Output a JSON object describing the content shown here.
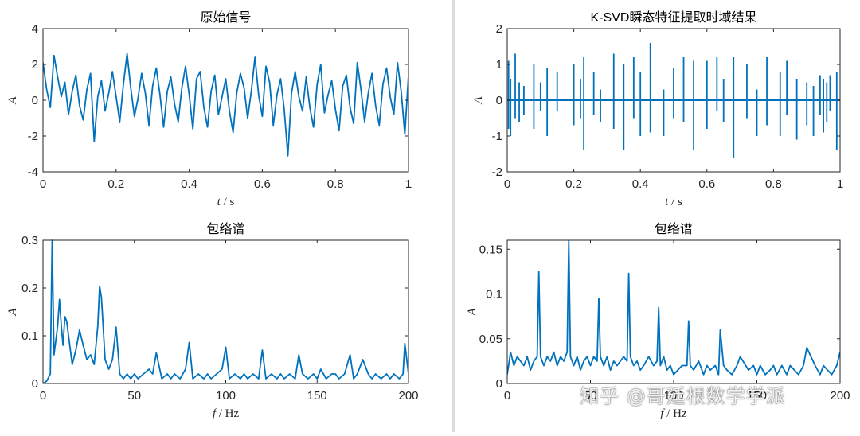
{
  "watermark": "知乎 @哥廷根数学学派",
  "colors": {
    "line": "#0072BD",
    "axis": "#262626"
  },
  "chart_data": [
    {
      "type": "line",
      "title": "原始信号",
      "xlabel_var": "t",
      "xlabel_unit": " / s",
      "ylabel": "A",
      "xlim": [
        0,
        1
      ],
      "ylim": [
        -4,
        4
      ],
      "xticks": [
        0,
        0.2,
        0.4,
        0.6,
        0.8,
        1
      ],
      "yticks": [
        -4,
        -2,
        0,
        2,
        4
      ],
      "xtick_labels": [
        "0",
        "0.2",
        "0.4",
        "0.6",
        "0.8",
        "1"
      ],
      "ytick_labels": [
        "-4",
        "-2",
        "0",
        "2",
        "4"
      ],
      "x": [
        0,
        0.01,
        0.02,
        0.03,
        0.04,
        0.05,
        0.06,
        0.07,
        0.08,
        0.09,
        0.1,
        0.11,
        0.12,
        0.13,
        0.14,
        0.15,
        0.16,
        0.17,
        0.18,
        0.19,
        0.2,
        0.21,
        0.22,
        0.23,
        0.24,
        0.25,
        0.26,
        0.27,
        0.28,
        0.29,
        0.3,
        0.31,
        0.32,
        0.33,
        0.34,
        0.35,
        0.36,
        0.37,
        0.38,
        0.39,
        0.4,
        0.41,
        0.42,
        0.43,
        0.44,
        0.45,
        0.46,
        0.47,
        0.48,
        0.49,
        0.5,
        0.51,
        0.52,
        0.53,
        0.54,
        0.55,
        0.56,
        0.57,
        0.58,
        0.59,
        0.6,
        0.61,
        0.62,
        0.63,
        0.64,
        0.65,
        0.66,
        0.67,
        0.68,
        0.69,
        0.7,
        0.71,
        0.72,
        0.73,
        0.74,
        0.75,
        0.76,
        0.77,
        0.78,
        0.79,
        0.8,
        0.81,
        0.82,
        0.83,
        0.84,
        0.85,
        0.86,
        0.87,
        0.88,
        0.89,
        0.9,
        0.91,
        0.92,
        0.93,
        0.94,
        0.95,
        0.96,
        0.97,
        0.98,
        0.99,
        1
      ],
      "values": [
        2.1,
        0.6,
        -0.4,
        2.5,
        1.3,
        0.2,
        1.0,
        -0.8,
        0.5,
        1.4,
        -0.3,
        -1.1,
        0.6,
        1.5,
        -2.3,
        0.2,
        1.1,
        -0.6,
        0.4,
        1.6,
        0.2,
        -1.2,
        0.9,
        2.6,
        0.7,
        -0.9,
        0.1,
        1.5,
        0.4,
        -1.4,
        0.8,
        1.8,
        0.3,
        -1.5,
        0.5,
        1.3,
        -0.2,
        -1.2,
        0.7,
        1.9,
        0.3,
        -1.6,
        1.2,
        1.6,
        -0.4,
        -1.5,
        0.5,
        1.4,
        -0.8,
        0.2,
        1.2,
        -0.6,
        -1.8,
        0.4,
        1.5,
        0.7,
        -1.0,
        0.5,
        2.4,
        0.3,
        -0.9,
        1.9,
        1.0,
        -1.4,
        0.3,
        1.2,
        -0.5,
        -3.1,
        0.4,
        1.6,
        0.2,
        -0.6,
        1.3,
        -0.4,
        -1.5,
        0.9,
        2.0,
        -0.7,
        0.3,
        1.1,
        -0.5,
        -1.7,
        0.8,
        1.4,
        -0.4,
        -1.3,
        2.1,
        0.6,
        -1.2,
        0.4,
        1.5,
        -0.3,
        -1.4,
        0.9,
        1.8,
        0.2,
        -0.8,
        2.1,
        0.5,
        -1.9,
        1.4
      ]
    },
    {
      "type": "line",
      "title": "K-SVD瞬态特征提取时域结果",
      "xlabel_var": "t",
      "xlabel_unit": " / s",
      "ylabel": "A",
      "xlim": [
        0,
        1
      ],
      "ylim": [
        -2,
        2
      ],
      "xticks": [
        0,
        0.2,
        0.4,
        0.6,
        0.8,
        1
      ],
      "yticks": [
        -2,
        -1,
        0,
        1,
        2
      ],
      "xtick_labels": [
        "0",
        "0.2",
        "0.4",
        "0.6",
        "0.8",
        "1"
      ],
      "ytick_labels": [
        "-2",
        "-1",
        "0",
        "1",
        "2"
      ],
      "impulses": [
        {
          "t": 0.004,
          "hi": 1.1,
          "lo": -0.8
        },
        {
          "t": 0.01,
          "hi": 0.6,
          "lo": -1.0
        },
        {
          "t": 0.024,
          "hi": 1.3,
          "lo": -0.5
        },
        {
          "t": 0.036,
          "hi": 0.5,
          "lo": -0.6
        },
        {
          "t": 0.05,
          "hi": 0.4,
          "lo": -0.4
        },
        {
          "t": 0.08,
          "hi": 1.0,
          "lo": -0.8
        },
        {
          "t": 0.1,
          "hi": 0.5,
          "lo": -0.3
        },
        {
          "t": 0.12,
          "hi": 0.9,
          "lo": -1.0
        },
        {
          "t": 0.15,
          "hi": 0.8,
          "lo": -0.3
        },
        {
          "t": 0.2,
          "hi": 1.0,
          "lo": -0.7
        },
        {
          "t": 0.22,
          "hi": 0.6,
          "lo": -0.5
        },
        {
          "t": 0.23,
          "hi": 1.2,
          "lo": -1.4
        },
        {
          "t": 0.26,
          "hi": 0.8,
          "lo": -0.4
        },
        {
          "t": 0.28,
          "hi": 0.3,
          "lo": -0.6
        },
        {
          "t": 0.32,
          "hi": 1.3,
          "lo": -0.8
        },
        {
          "t": 0.35,
          "hi": 1.0,
          "lo": -1.4
        },
        {
          "t": 0.38,
          "hi": 1.2,
          "lo": -0.5
        },
        {
          "t": 0.4,
          "hi": 0.8,
          "lo": -1.0
        },
        {
          "t": 0.43,
          "hi": 1.6,
          "lo": -0.9
        },
        {
          "t": 0.47,
          "hi": 0.3,
          "lo": -1.0
        },
        {
          "t": 0.5,
          "hi": 0.9,
          "lo": -0.5
        },
        {
          "t": 0.53,
          "hi": 1.2,
          "lo": -0.6
        },
        {
          "t": 0.56,
          "hi": 1.1,
          "lo": -1.4
        },
        {
          "t": 0.6,
          "hi": 1.1,
          "lo": -0.8
        },
        {
          "t": 0.63,
          "hi": 1.2,
          "lo": -0.3
        },
        {
          "t": 0.65,
          "hi": 0.6,
          "lo": -0.6
        },
        {
          "t": 0.68,
          "hi": 1.2,
          "lo": -1.6
        },
        {
          "t": 0.72,
          "hi": 1.0,
          "lo": -0.5
        },
        {
          "t": 0.75,
          "hi": 0.3,
          "lo": -1.0
        },
        {
          "t": 0.78,
          "hi": 1.2,
          "lo": -0.7
        },
        {
          "t": 0.82,
          "hi": 0.8,
          "lo": -1.0
        },
        {
          "t": 0.84,
          "hi": 1.1,
          "lo": -0.4
        },
        {
          "t": 0.87,
          "hi": 0.6,
          "lo": -1.1
        },
        {
          "t": 0.9,
          "hi": 0.5,
          "lo": -0.7
        },
        {
          "t": 0.92,
          "hi": 0.4,
          "lo": -1.0
        },
        {
          "t": 0.94,
          "hi": 0.7,
          "lo": -0.4
        },
        {
          "t": 0.95,
          "hi": 0.6,
          "lo": -0.9
        },
        {
          "t": 0.96,
          "hi": 0.5,
          "lo": -0.6
        },
        {
          "t": 0.97,
          "hi": 0.7,
          "lo": -0.3
        },
        {
          "t": 0.99,
          "hi": 0.8,
          "lo": -1.4
        }
      ]
    },
    {
      "type": "line",
      "title": "包络谱",
      "xlabel_var": "f",
      "xlabel_unit": " / Hz",
      "ylabel": "A",
      "xlim": [
        0,
        200
      ],
      "ylim": [
        0,
        0.3
      ],
      "xticks": [
        0,
        50,
        100,
        150,
        200
      ],
      "yticks": [
        0,
        0.1,
        0.2,
        0.3
      ],
      "xtick_labels": [
        "0",
        "50",
        "100",
        "150",
        "200"
      ],
      "ytick_labels": [
        "0",
        "0.1",
        "0.2",
        "0.3"
      ],
      "x": [
        0,
        2,
        4,
        5,
        6,
        8,
        9,
        10,
        11,
        12,
        13,
        14,
        16,
        18,
        20,
        22,
        24,
        26,
        28,
        30,
        31,
        32,
        34,
        36,
        38,
        40,
        42,
        44,
        46,
        48,
        50,
        52,
        55,
        58,
        60,
        62,
        65,
        68,
        70,
        72,
        75,
        78,
        80,
        82,
        85,
        88,
        90,
        92,
        95,
        98,
        100,
        102,
        105,
        108,
        110,
        112,
        115,
        118,
        120,
        122,
        125,
        128,
        130,
        132,
        135,
        138,
        140,
        142,
        145,
        148,
        150,
        152,
        155,
        158,
        160,
        162,
        165,
        168,
        170,
        172,
        175,
        178,
        180,
        182,
        185,
        188,
        190,
        192,
        195,
        197,
        198,
        200
      ],
      "values": [
        0,
        0.005,
        0.02,
        0.3,
        0.06,
        0.12,
        0.176,
        0.12,
        0.08,
        0.14,
        0.13,
        0.1,
        0.04,
        0.07,
        0.112,
        0.08,
        0.05,
        0.06,
        0.04,
        0.12,
        0.204,
        0.18,
        0.05,
        0.03,
        0.05,
        0.118,
        0.02,
        0.01,
        0.02,
        0.01,
        0.02,
        0.01,
        0.02,
        0.03,
        0.02,
        0.064,
        0.01,
        0.02,
        0.01,
        0.02,
        0.01,
        0.03,
        0.086,
        0.01,
        0.02,
        0.01,
        0.02,
        0.01,
        0.02,
        0.03,
        0.076,
        0.01,
        0.02,
        0.01,
        0.02,
        0.01,
        0.02,
        0.01,
        0.07,
        0.01,
        0.02,
        0.01,
        0.02,
        0.01,
        0.02,
        0.01,
        0.06,
        0.02,
        0.01,
        0.02,
        0.01,
        0.03,
        0.01,
        0.02,
        0.02,
        0.01,
        0.02,
        0.06,
        0.01,
        0.02,
        0.05,
        0.02,
        0.01,
        0.02,
        0.01,
        0.02,
        0.01,
        0.02,
        0.01,
        0.02,
        0.084,
        0.02
      ]
    },
    {
      "type": "line",
      "title": "包络谱",
      "xlabel_var": "f",
      "xlabel_unit": " / Hz",
      "ylabel": "A",
      "xlim": [
        0,
        200
      ],
      "ylim": [
        0,
        0.16
      ],
      "xticks": [
        0,
        50,
        100,
        150,
        200
      ],
      "yticks": [
        0,
        0.05,
        0.1,
        0.15
      ],
      "xtick_labels": [
        "0",
        "50",
        "100",
        "150",
        "200"
      ],
      "ytick_labels": [
        "0",
        "0.05",
        "0.1",
        "0.15"
      ],
      "x": [
        0,
        2,
        4,
        6,
        8,
        10,
        12,
        14,
        16,
        18,
        19,
        20,
        22,
        24,
        26,
        28,
        30,
        32,
        34,
        36,
        37,
        38,
        40,
        42,
        44,
        46,
        48,
        50,
        52,
        54,
        55,
        56,
        58,
        60,
        62,
        64,
        66,
        70,
        72,
        73,
        74,
        76,
        78,
        80,
        82,
        85,
        88,
        90,
        91,
        92,
        94,
        96,
        98,
        100,
        105,
        108,
        109,
        110,
        112,
        115,
        118,
        120,
        122,
        125,
        127,
        128,
        130,
        132,
        135,
        138,
        140,
        145,
        148,
        150,
        152,
        155,
        158,
        160,
        162,
        165,
        168,
        170,
        175,
        178,
        180,
        185,
        188,
        190,
        195,
        198,
        200
      ],
      "values": [
        0.01,
        0.035,
        0.02,
        0.03,
        0.025,
        0.02,
        0.03,
        0.015,
        0.025,
        0.03,
        0.125,
        0.03,
        0.02,
        0.03,
        0.025,
        0.035,
        0.02,
        0.03,
        0.025,
        0.035,
        0.16,
        0.03,
        0.02,
        0.03,
        0.015,
        0.025,
        0.03,
        0.02,
        0.03,
        0.025,
        0.095,
        0.03,
        0.02,
        0.03,
        0.015,
        0.025,
        0.02,
        0.03,
        0.025,
        0.123,
        0.03,
        0.02,
        0.025,
        0.015,
        0.02,
        0.03,
        0.02,
        0.025,
        0.085,
        0.02,
        0.03,
        0.015,
        0.02,
        0.01,
        0.02,
        0.02,
        0.07,
        0.02,
        0.015,
        0.025,
        0.01,
        0.02,
        0.015,
        0.02,
        0.01,
        0.06,
        0.02,
        0.015,
        0.01,
        0.02,
        0.03,
        0.015,
        0.02,
        0.01,
        0.02,
        0.01,
        0.015,
        0.02,
        0.01,
        0.02,
        0.01,
        0.02,
        0.01,
        0.02,
        0.04,
        0.02,
        0.01,
        0.02,
        0.01,
        0.02,
        0.035
      ]
    }
  ]
}
